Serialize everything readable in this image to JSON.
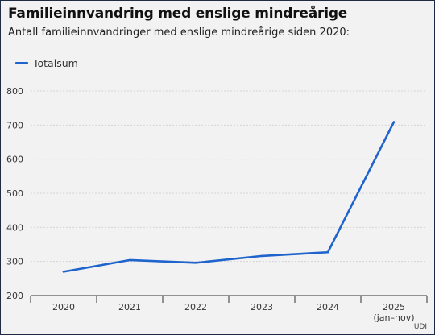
{
  "chart_data": {
    "type": "line",
    "title": "Familieinnvandring med enslige mindreårige",
    "subtitle": "Antall familieinnvandringer med enslige mindreårige siden 2020:",
    "categories": [
      "2020",
      "2021",
      "2022",
      "2023",
      "2024",
      "2025"
    ],
    "category_sublabels": [
      "",
      "",
      "",
      "",
      "",
      "(jan–nov)"
    ],
    "series": [
      {
        "name": "Totalsum",
        "color": "#1f63cc",
        "values": [
          270,
          304,
          296,
          316,
          327,
          709
        ]
      }
    ],
    "ylim": [
      200,
      800
    ],
    "yticks": [
      200,
      300,
      400,
      500,
      600,
      700,
      800
    ],
    "grid": true,
    "legend": "top-left",
    "source": "UDI"
  }
}
